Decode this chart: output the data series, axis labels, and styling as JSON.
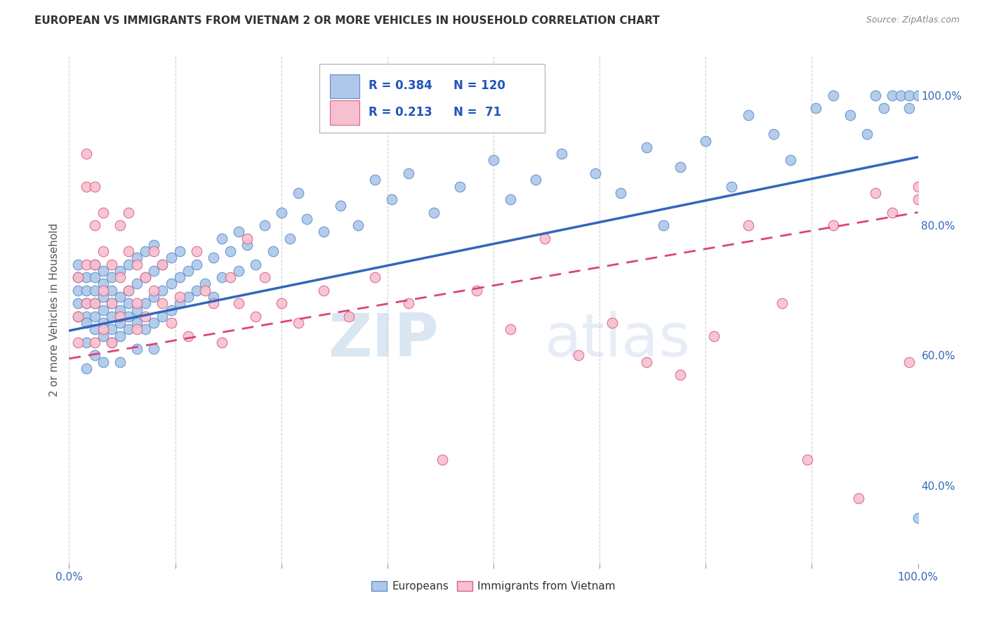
{
  "title": "EUROPEAN VS IMMIGRANTS FROM VIETNAM 2 OR MORE VEHICLES IN HOUSEHOLD CORRELATION CHART",
  "source": "Source: ZipAtlas.com",
  "ylabel": "2 or more Vehicles in Household",
  "xmin": 0.0,
  "xmax": 1.0,
  "ymin": 0.28,
  "ymax": 1.06,
  "x_tick_positions": [
    0.0,
    0.125,
    0.25,
    0.375,
    0.5,
    0.625,
    0.75,
    0.875,
    1.0
  ],
  "x_tick_labels_show": [
    "0.0%",
    "",
    "",
    "",
    "",
    "",
    "",
    "",
    "100.0%"
  ],
  "y_tick_positions_right": [
    1.0,
    0.8,
    0.6,
    0.4
  ],
  "y_tick_labels_right": [
    "100.0%",
    "80.0%",
    "60.0%",
    "40.0%"
  ],
  "european_color": "#adc8e8",
  "vietnam_color": "#f5c0d0",
  "european_edge": "#5b8fcc",
  "vietnam_edge": "#e06080",
  "trend_european_color": "#3366bb",
  "trend_vietnam_color": "#dd4477",
  "legend_label_european": "Europeans",
  "legend_label_vietnam": "Immigrants from Vietnam",
  "R_european": 0.384,
  "N_european": 120,
  "R_vietnam": 0.213,
  "N_vietnam": 71,
  "watermark_zip": "ZIP",
  "watermark_atlas": "atlas",
  "background_color": "#ffffff",
  "grid_color": "#cccccc",
  "eu_trend_x0": 0.0,
  "eu_trend_y0": 0.638,
  "eu_trend_x1": 1.0,
  "eu_trend_y1": 0.905,
  "vn_trend_x0": 0.0,
  "vn_trend_y0": 0.595,
  "vn_trend_x1": 1.0,
  "vn_trend_y1": 0.82,
  "european_x": [
    0.01,
    0.01,
    0.01,
    0.01,
    0.01,
    0.02,
    0.02,
    0.02,
    0.02,
    0.02,
    0.02,
    0.02,
    0.03,
    0.03,
    0.03,
    0.03,
    0.03,
    0.03,
    0.03,
    0.04,
    0.04,
    0.04,
    0.04,
    0.04,
    0.04,
    0.04,
    0.05,
    0.05,
    0.05,
    0.05,
    0.05,
    0.05,
    0.06,
    0.06,
    0.06,
    0.06,
    0.06,
    0.06,
    0.07,
    0.07,
    0.07,
    0.07,
    0.07,
    0.08,
    0.08,
    0.08,
    0.08,
    0.08,
    0.09,
    0.09,
    0.09,
    0.09,
    0.1,
    0.1,
    0.1,
    0.1,
    0.1,
    0.11,
    0.11,
    0.11,
    0.12,
    0.12,
    0.12,
    0.13,
    0.13,
    0.13,
    0.14,
    0.14,
    0.15,
    0.15,
    0.16,
    0.17,
    0.17,
    0.18,
    0.18,
    0.19,
    0.2,
    0.2,
    0.21,
    0.22,
    0.23,
    0.24,
    0.25,
    0.26,
    0.27,
    0.28,
    0.3,
    0.32,
    0.34,
    0.36,
    0.38,
    0.4,
    0.43,
    0.46,
    0.5,
    0.52,
    0.55,
    0.58,
    0.62,
    0.65,
    0.68,
    0.7,
    0.72,
    0.75,
    0.78,
    0.8,
    0.83,
    0.85,
    0.88,
    0.9,
    0.92,
    0.94,
    0.95,
    0.96,
    0.97,
    0.98,
    0.99,
    0.99,
    1.0,
    1.0
  ],
  "european_y": [
    0.72,
    0.66,
    0.7,
    0.68,
    0.74,
    0.62,
    0.66,
    0.7,
    0.68,
    0.72,
    0.65,
    0.58,
    0.64,
    0.68,
    0.72,
    0.66,
    0.6,
    0.7,
    0.74,
    0.63,
    0.67,
    0.71,
    0.65,
    0.69,
    0.73,
    0.59,
    0.64,
    0.68,
    0.72,
    0.66,
    0.7,
    0.62,
    0.65,
    0.69,
    0.73,
    0.67,
    0.63,
    0.59,
    0.66,
    0.7,
    0.74,
    0.68,
    0.64,
    0.67,
    0.71,
    0.65,
    0.75,
    0.61,
    0.68,
    0.72,
    0.64,
    0.76,
    0.69,
    0.73,
    0.65,
    0.77,
    0.61,
    0.7,
    0.74,
    0.66,
    0.71,
    0.75,
    0.67,
    0.72,
    0.68,
    0.76,
    0.73,
    0.69,
    0.74,
    0.7,
    0.71,
    0.75,
    0.69,
    0.78,
    0.72,
    0.76,
    0.73,
    0.79,
    0.77,
    0.74,
    0.8,
    0.76,
    0.82,
    0.78,
    0.85,
    0.81,
    0.79,
    0.83,
    0.8,
    0.87,
    0.84,
    0.88,
    0.82,
    0.86,
    0.9,
    0.84,
    0.87,
    0.91,
    0.88,
    0.85,
    0.92,
    0.8,
    0.89,
    0.93,
    0.86,
    0.97,
    0.94,
    0.9,
    0.98,
    1.0,
    0.97,
    0.94,
    1.0,
    0.98,
    1.0,
    1.0,
    0.98,
    1.0,
    1.0,
    0.35
  ],
  "vietnam_x": [
    0.01,
    0.01,
    0.01,
    0.02,
    0.02,
    0.02,
    0.02,
    0.03,
    0.03,
    0.03,
    0.03,
    0.03,
    0.04,
    0.04,
    0.04,
    0.04,
    0.05,
    0.05,
    0.05,
    0.06,
    0.06,
    0.06,
    0.07,
    0.07,
    0.07,
    0.08,
    0.08,
    0.08,
    0.09,
    0.09,
    0.1,
    0.1,
    0.11,
    0.11,
    0.12,
    0.13,
    0.14,
    0.15,
    0.16,
    0.17,
    0.18,
    0.19,
    0.2,
    0.21,
    0.22,
    0.23,
    0.25,
    0.27,
    0.3,
    0.33,
    0.36,
    0.4,
    0.44,
    0.48,
    0.52,
    0.56,
    0.6,
    0.64,
    0.68,
    0.72,
    0.76,
    0.8,
    0.84,
    0.87,
    0.9,
    0.93,
    0.95,
    0.97,
    0.99,
    1.0,
    1.0
  ],
  "vietnam_y": [
    0.72,
    0.66,
    0.62,
    0.68,
    0.91,
    0.86,
    0.74,
    0.8,
    0.74,
    0.68,
    0.86,
    0.62,
    0.76,
    0.7,
    0.82,
    0.64,
    0.74,
    0.68,
    0.62,
    0.8,
    0.72,
    0.66,
    0.82,
    0.76,
    0.7,
    0.68,
    0.74,
    0.64,
    0.72,
    0.66,
    0.76,
    0.7,
    0.74,
    0.68,
    0.65,
    0.69,
    0.63,
    0.76,
    0.7,
    0.68,
    0.62,
    0.72,
    0.68,
    0.78,
    0.66,
    0.72,
    0.68,
    0.65,
    0.7,
    0.66,
    0.72,
    0.68,
    0.44,
    0.7,
    0.64,
    0.78,
    0.6,
    0.65,
    0.59,
    0.57,
    0.63,
    0.8,
    0.68,
    0.44,
    0.8,
    0.38,
    0.85,
    0.82,
    0.59,
    0.86,
    0.84
  ]
}
